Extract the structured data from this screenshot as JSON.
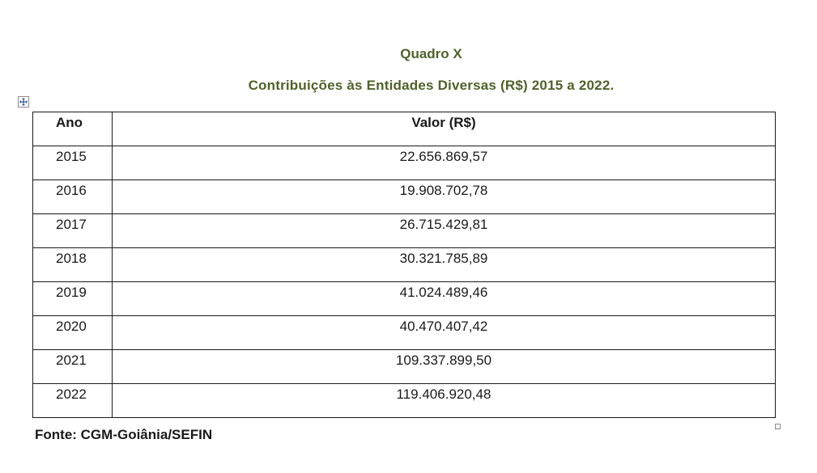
{
  "document": {
    "title": "Quadro X",
    "subtitle": "Contribuições às Entidades Diversas  (R$) 2015 a 2022.",
    "source": "Fonte: CGM-Goiânia/SEFIN"
  },
  "table": {
    "headers": {
      "ano": "Ano",
      "valor": "Valor (R$)"
    },
    "rows": [
      {
        "ano": "2015",
        "valor": "22.656.869,57"
      },
      {
        "ano": "2016",
        "valor": "19.908.702,78"
      },
      {
        "ano": "2017",
        "valor": "26.715.429,81"
      },
      {
        "ano": "2018",
        "valor": "30.321.785,89"
      },
      {
        "ano": "2019",
        "valor": "41.024.489,46"
      },
      {
        "ano": "2020",
        "valor": "40.470.407,42"
      },
      {
        "ano": "2021",
        "valor": "109.337.899,50"
      },
      {
        "ano": "2022",
        "valor": "119.406.920,48"
      }
    ]
  },
  "colors": {
    "title": "#4f6228",
    "text": "#1a1a1a",
    "border": "#1a1a1a"
  },
  "icons": {
    "table_move_handle": "move-arrows-icon",
    "table_resize_handle": "resize-handle-icon"
  }
}
